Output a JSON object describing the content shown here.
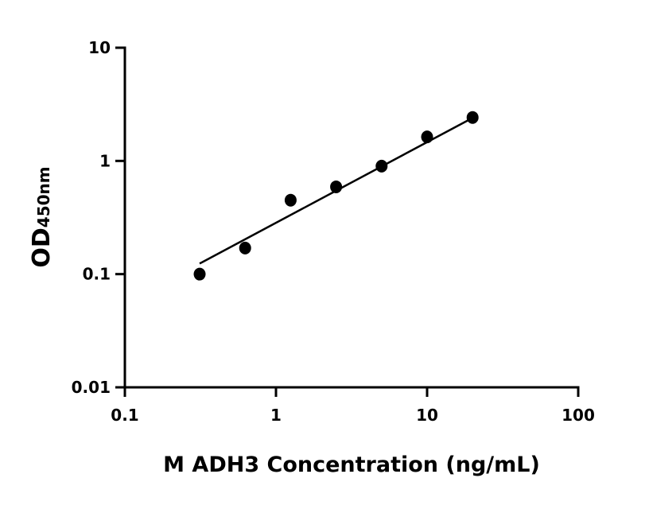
{
  "chart_data": {
    "type": "scatter",
    "title": "",
    "xlabel": "M ADH3 Concentration (ng/mL)",
    "ylabel_main": "OD",
    "ylabel_sub": "450nm",
    "x_scale": "log",
    "y_scale": "log",
    "xlim": [
      0.1,
      100
    ],
    "ylim": [
      0.01,
      10
    ],
    "x_ticks": [
      "0.1",
      "1",
      "10",
      "100"
    ],
    "y_ticks": [
      "0.01",
      "0.1",
      "1",
      "10"
    ],
    "grid": false,
    "points": [
      {
        "x": 0.3125,
        "y": 0.1
      },
      {
        "x": 0.625,
        "y": 0.17
      },
      {
        "x": 1.25,
        "y": 0.45
      },
      {
        "x": 2.5,
        "y": 0.59
      },
      {
        "x": 5,
        "y": 0.9
      },
      {
        "x": 10,
        "y": 1.63
      },
      {
        "x": 20,
        "y": 2.42
      }
    ],
    "fit_line": [
      {
        "x": 0.3125,
        "y": 0.124
      },
      {
        "x": 20,
        "y": 2.4
      }
    ],
    "marker_color": "#000000",
    "line_color": "#000000"
  }
}
